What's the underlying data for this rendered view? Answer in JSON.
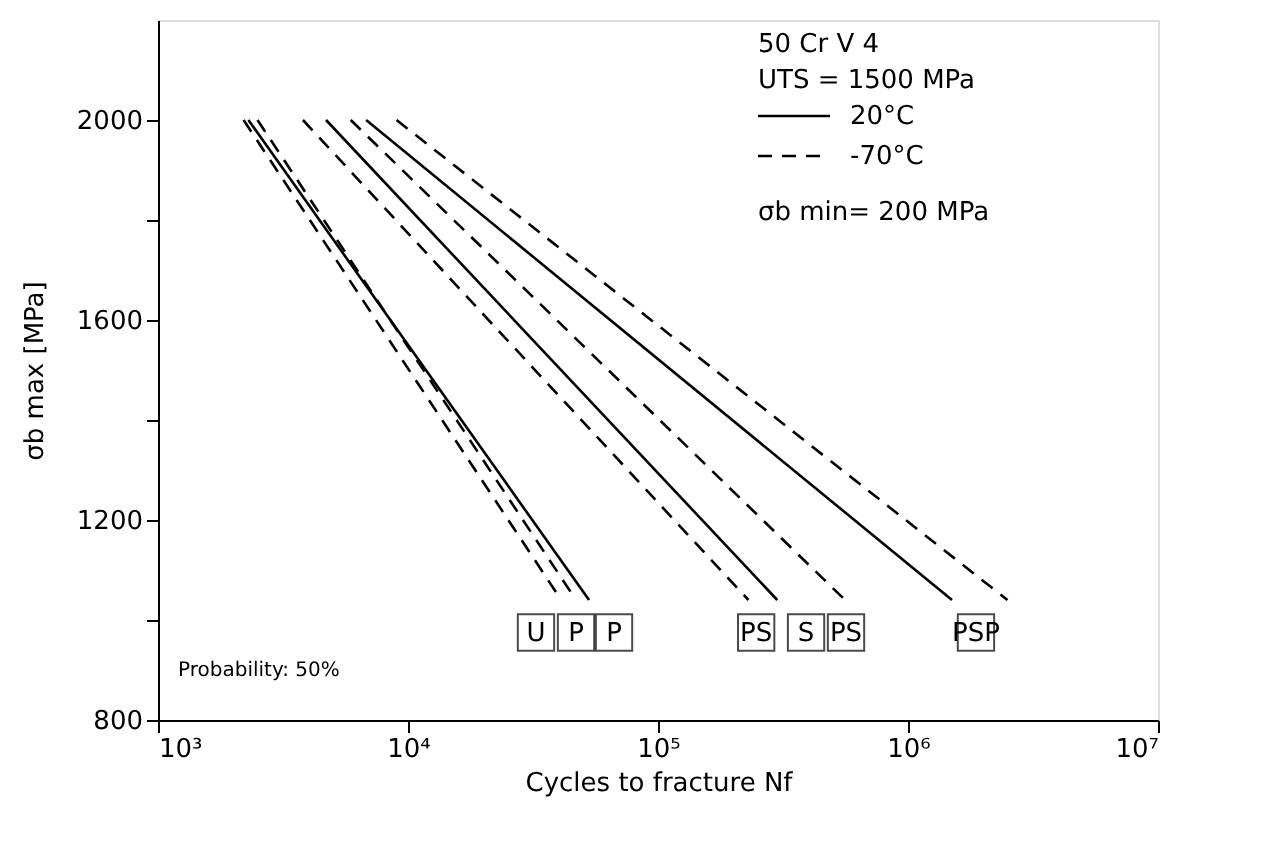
{
  "chart_data": {
    "type": "line",
    "xlabel": "Cycles to fracture Nf",
    "ylabel": "σb max [MPa]",
    "log": "x",
    "xlim": [
      1000,
      10000000
    ],
    "ylim": [
      800,
      2200
    ],
    "xticks": [
      {
        "value": 1000,
        "label": "10³"
      },
      {
        "value": 10000,
        "label": "10⁴"
      },
      {
        "value": 100000,
        "label": "10⁵"
      },
      {
        "value": 1000000,
        "label": "10⁶"
      },
      {
        "value": 10000000,
        "label": "10⁷"
      }
    ],
    "yticks": [
      800,
      {
        "value": 1000,
        "label": null
      },
      1200,
      {
        "value": 1400,
        "label": null
      },
      1600,
      {
        "value": 1800,
        "label": null
      },
      2000
    ],
    "grid": false,
    "legend": "top right",
    "marker": "none",
    "series": [
      {
        "name": "20°C",
        "color": "#000000",
        "line_style": "solid",
        "x": [
          2300,
          53000,
          null,
          4700,
          300000,
          null,
          6800,
          1500000
        ],
        "values": [
          2000,
          1040,
          null,
          2000,
          1040,
          null,
          2000,
          1040
        ]
      },
      {
        "name": "-70°C",
        "color": "#000000",
        "line_style": "dashed",
        "x": [
          2200,
          41000,
          null,
          2500,
          47000,
          null,
          3800,
          230000,
          null,
          5900,
          560000,
          null,
          9000,
          2500000
        ],
        "values": [
          2000,
          1040,
          null,
          2000,
          1040,
          null,
          2000,
          1040,
          null,
          2000,
          1040,
          null,
          2000,
          1040
        ]
      }
    ],
    "annotations": [
      "50 Cr V 4",
      "UTS = 1500 MPa",
      "σb min= 200 MPa",
      {
        "text": "U",
        "x": 32500,
        "y": 975
      },
      {
        "text": "P",
        "x": 47000,
        "y": 975
      },
      {
        "text": "P",
        "x": 66700,
        "y": 975
      },
      {
        "text": "PS",
        "x": 247000,
        "y": 975
      },
      {
        "text": "S",
        "x": 391000,
        "y": 975
      },
      {
        "text": "PS",
        "x": 565000,
        "y": 975
      },
      {
        "text": "PSP",
        "x": 1870000,
        "y": 975
      },
      "Probability: 50%"
    ]
  }
}
